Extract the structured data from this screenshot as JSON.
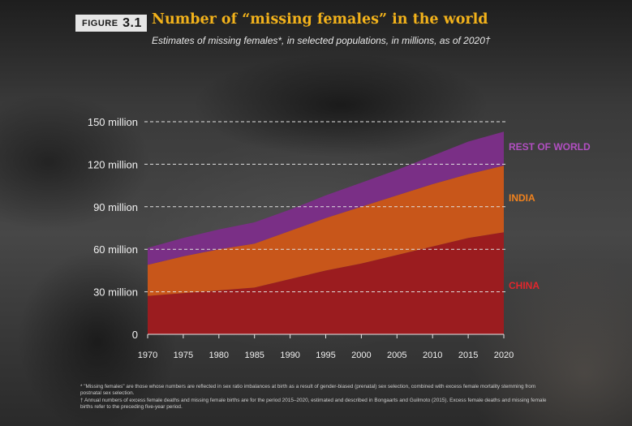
{
  "header": {
    "figure_label": "FIGURE",
    "figure_number": "3.1",
    "title": "Number of “missing females” in the world",
    "subtitle": "Estimates of missing females*, in selected populations, in millions, as of 2020†"
  },
  "chart_data": {
    "type": "area",
    "stacked": true,
    "title": "Number of “missing females” in the world",
    "subtitle": "Estimates of missing females*, in selected populations, in millions, as of 2020†",
    "x": [
      1970,
      1975,
      1980,
      1985,
      1990,
      1995,
      2000,
      2005,
      2010,
      2015,
      2020
    ],
    "xlim": [
      1970,
      2020
    ],
    "ylim": [
      0,
      150
    ],
    "y_ticks": [
      0,
      30,
      60,
      90,
      120,
      150
    ],
    "y_tick_labels": [
      "0",
      "30 million",
      "60 million",
      "90 million",
      "120 million",
      "150 million"
    ],
    "x_tick_labels": [
      "1970",
      "1975",
      "1980",
      "1985",
      "1990",
      "1995",
      "2000",
      "2005",
      "2010",
      "2015",
      "2020"
    ],
    "grid": "horizontal dashed",
    "legend": "inline labels at right",
    "series": [
      {
        "name": "CHINA",
        "color": "#9b1c1f",
        "values": [
          27,
          29,
          31,
          33,
          39,
          45,
          50,
          56,
          62,
          68,
          72
        ]
      },
      {
        "name": "INDIA",
        "color": "#c8561a",
        "values": [
          22,
          26,
          29,
          31,
          34,
          37,
          40,
          42,
          44,
          45,
          47
        ]
      },
      {
        "name": "REST OF WORLD",
        "color": "#7a2f86",
        "values": [
          12,
          13,
          14,
          15,
          15,
          16,
          17,
          18,
          20,
          23,
          24
        ]
      }
    ],
    "label_colors": {
      "REST OF WORLD": "#b24fc2",
      "INDIA": "#f0821e",
      "CHINA": "#e2262c"
    }
  },
  "footnotes": [
    "* \"Missing females\" are those whose numbers are reflected in sex ratio imbalances at birth as a result of gender-biased (prenatal) sex selection, combined with excess female mortality stemming from postnatal sex selection.",
    "† Annual numbers of excess female deaths and missing female births are for the period 2015–2020, estimated and described in Bongaarts and Guilmoto (2015). Excess female deaths and missing female births refer to the preceding five-year period."
  ]
}
